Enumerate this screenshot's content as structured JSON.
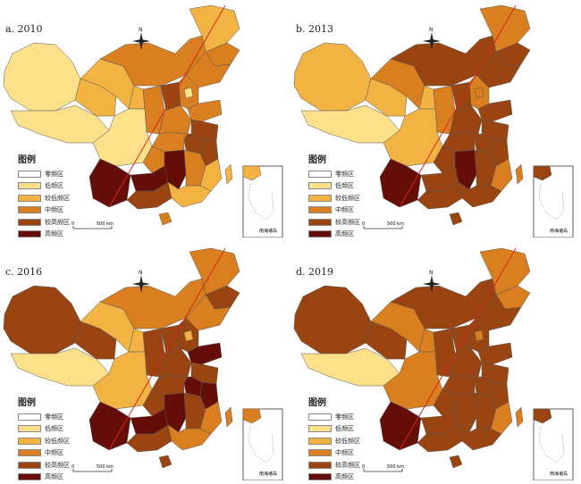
{
  "legend": {
    "title": "图例",
    "levels": [
      {
        "label": "零频区",
        "color": "#ffffff"
      },
      {
        "label": "低频区",
        "color": "#fde08a"
      },
      {
        "label": "较低频区",
        "color": "#f3b342"
      },
      {
        "label": "中频区",
        "color": "#d97f1f"
      },
      {
        "label": "较高频区",
        "color": "#9a4411"
      },
      {
        "label": "高频区",
        "color": "#650d08"
      }
    ]
  },
  "scale": {
    "zero": "0",
    "distance": "500 km"
  },
  "north": "N",
  "inset_label": "南海诸岛",
  "panels": [
    {
      "title": "a. 2010",
      "levels": [
        1,
        1,
        2,
        2,
        3,
        2,
        3,
        3,
        2,
        3,
        4,
        3,
        3,
        3,
        4,
        4,
        3,
        1,
        3,
        4,
        5,
        5,
        5,
        3,
        2,
        4,
        2,
        3,
        2,
        1
      ]
    },
    {
      "title": "b. 2013",
      "levels": [
        2,
        1,
        2,
        3,
        4,
        3,
        4,
        4,
        2,
        3,
        4,
        3,
        4,
        4,
        4,
        4,
        4,
        2,
        4,
        4,
        5,
        4,
        5,
        4,
        3,
        4,
        4,
        4,
        3,
        3
      ]
    },
    {
      "title": "c. 2016",
      "levels": [
        4,
        1,
        4,
        2,
        3,
        3,
        4,
        3,
        2,
        4,
        4,
        4,
        5,
        4,
        4,
        5,
        4,
        2,
        4,
        5,
        5,
        5,
        5,
        4,
        3,
        4,
        3,
        4,
        3,
        2
      ]
    },
    {
      "title": "d. 2019",
      "levels": [
        4,
        1,
        4,
        3,
        4,
        3,
        3,
        4,
        3,
        4,
        4,
        4,
        4,
        4,
        4,
        4,
        4,
        3,
        4,
        4,
        5,
        4,
        4,
        4,
        3,
        4,
        4,
        4,
        3,
        3
      ]
    }
  ]
}
